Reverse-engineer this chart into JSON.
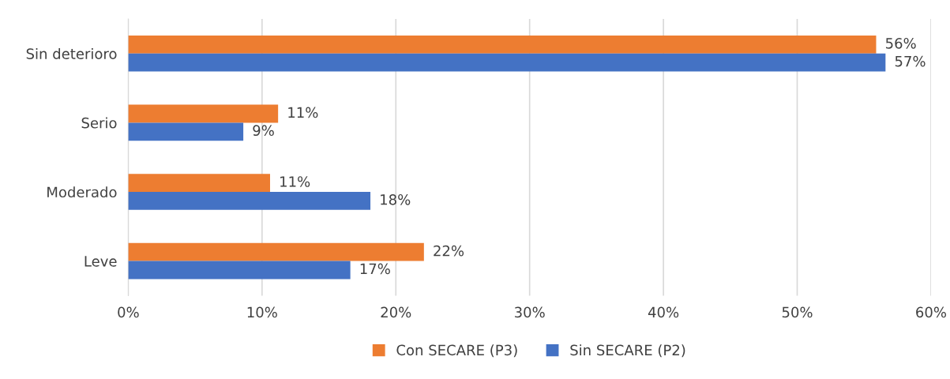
{
  "chart_data": {
    "type": "bar",
    "orientation": "horizontal",
    "categories": [
      "Sin deterioro",
      "Serio",
      "Moderado",
      "Leve"
    ],
    "series": [
      {
        "name": "Con SECARE (P3)",
        "color": "#ed7d31",
        "values": [
          55.9,
          11.2,
          10.6,
          22.1
        ],
        "value_labels": [
          "56%",
          "11%",
          "11%",
          "22%"
        ]
      },
      {
        "name": "Sin SECARE (P2)",
        "color": "#4472c4",
        "values": [
          56.6,
          8.6,
          18.1,
          16.6
        ],
        "value_labels": [
          "57%",
          "9%",
          "18%",
          "17%"
        ]
      }
    ],
    "xlim": [
      0,
      60
    ],
    "xticks": [
      {
        "value": 0,
        "label": "0%"
      },
      {
        "value": 10,
        "label": "10%"
      },
      {
        "value": 20,
        "label": "20%"
      },
      {
        "value": 30,
        "label": "30%"
      },
      {
        "value": 40,
        "label": "40%"
      },
      {
        "value": 50,
        "label": "50%"
      },
      {
        "value": 60,
        "label": "60%"
      }
    ],
    "grid": "x",
    "legend": "bottom"
  }
}
